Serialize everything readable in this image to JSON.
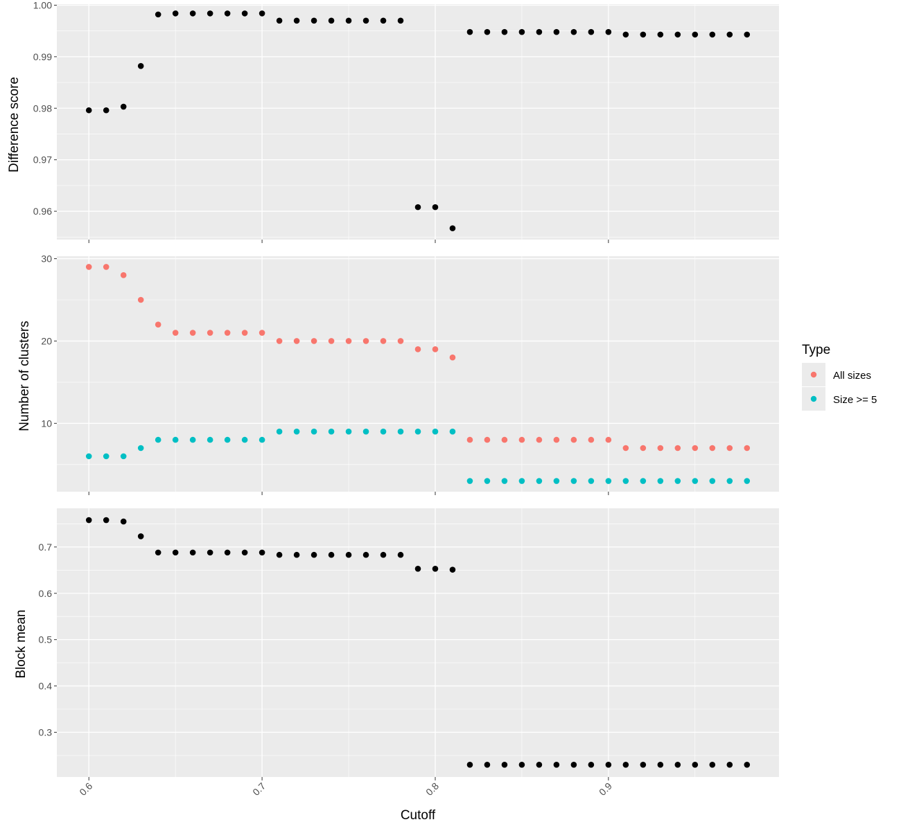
{
  "chart_data": [
    {
      "type": "scatter",
      "id": "difference",
      "ylabel": "Difference score",
      "ylim": [
        0.9545,
        1.0002
      ],
      "yticks": [
        "0.96",
        "0.97",
        "0.98",
        "0.99",
        "1.00"
      ],
      "yminor": [
        0.955,
        0.965,
        0.975,
        0.985,
        0.995
      ],
      "series": [
        {
          "color": "#000000",
          "x": [
            0.6,
            0.61,
            0.62,
            0.63,
            0.64,
            0.65,
            0.66,
            0.67,
            0.68,
            0.69,
            0.7,
            0.71,
            0.72,
            0.73,
            0.74,
            0.75,
            0.76,
            0.77,
            0.78,
            0.79,
            0.8,
            0.81,
            0.82,
            0.83,
            0.84,
            0.85,
            0.86,
            0.87,
            0.88,
            0.89,
            0.9,
            0.91,
            0.92,
            0.93,
            0.94,
            0.95,
            0.96,
            0.97,
            0.98
          ],
          "y": [
            0.9796,
            0.9796,
            0.9803,
            0.9882,
            0.9982,
            0.9984,
            0.9984,
            0.9984,
            0.9984,
            0.9984,
            0.9984,
            0.997,
            0.997,
            0.997,
            0.997,
            0.997,
            0.997,
            0.997,
            0.997,
            0.9608,
            0.9608,
            0.9567,
            0.9948,
            0.9948,
            0.9948,
            0.9948,
            0.9948,
            0.9948,
            0.9948,
            0.9948,
            0.9948,
            0.9943,
            0.9943,
            0.9943,
            0.9943,
            0.9943,
            0.9943,
            0.9943,
            0.9943
          ]
        }
      ]
    },
    {
      "type": "scatter",
      "id": "clusters",
      "ylabel": "Number of clusters",
      "ylim": [
        1.7,
        30.3
      ],
      "yticks": [
        "10",
        "20",
        "30"
      ],
      "yminor": [
        5,
        15,
        25
      ],
      "series": [
        {
          "name": "All sizes",
          "color": "#F8766D",
          "x": [
            0.6,
            0.61,
            0.62,
            0.63,
            0.64,
            0.65,
            0.66,
            0.67,
            0.68,
            0.69,
            0.7,
            0.71,
            0.72,
            0.73,
            0.74,
            0.75,
            0.76,
            0.77,
            0.78,
            0.79,
            0.8,
            0.81,
            0.82,
            0.83,
            0.84,
            0.85,
            0.86,
            0.87,
            0.88,
            0.89,
            0.9,
            0.91,
            0.92,
            0.93,
            0.94,
            0.95,
            0.96,
            0.97,
            0.98
          ],
          "y": [
            29,
            29,
            28,
            25,
            22,
            21,
            21,
            21,
            21,
            21,
            21,
            20,
            20,
            20,
            20,
            20,
            20,
            20,
            20,
            19,
            19,
            18,
            8,
            8,
            8,
            8,
            8,
            8,
            8,
            8,
            8,
            7,
            7,
            7,
            7,
            7,
            7,
            7,
            7
          ]
        },
        {
          "name": "Size >= 5",
          "color": "#00BFC4",
          "x": [
            0.6,
            0.61,
            0.62,
            0.63,
            0.64,
            0.65,
            0.66,
            0.67,
            0.68,
            0.69,
            0.7,
            0.71,
            0.72,
            0.73,
            0.74,
            0.75,
            0.76,
            0.77,
            0.78,
            0.79,
            0.8,
            0.81,
            0.82,
            0.83,
            0.84,
            0.85,
            0.86,
            0.87,
            0.88,
            0.89,
            0.9,
            0.91,
            0.92,
            0.93,
            0.94,
            0.95,
            0.96,
            0.97,
            0.98
          ],
          "y": [
            6,
            6,
            6,
            7,
            8,
            8,
            8,
            8,
            8,
            8,
            8,
            9,
            9,
            9,
            9,
            9,
            9,
            9,
            9,
            9,
            9,
            9,
            3,
            3,
            3,
            3,
            3,
            3,
            3,
            3,
            3,
            3,
            3,
            3,
            3,
            3,
            3,
            3,
            3
          ]
        }
      ]
    },
    {
      "type": "scatter",
      "id": "blockmean",
      "ylabel": "Block mean",
      "ylim": [
        0.2035,
        0.7835
      ],
      "yticks": [
        "0.3",
        "0.4",
        "0.5",
        "0.6",
        "0.7"
      ],
      "yminor": [
        0.25,
        0.35,
        0.45,
        0.55,
        0.65,
        0.75
      ],
      "series": [
        {
          "color": "#000000",
          "x": [
            0.6,
            0.61,
            0.62,
            0.63,
            0.64,
            0.65,
            0.66,
            0.67,
            0.68,
            0.69,
            0.7,
            0.71,
            0.72,
            0.73,
            0.74,
            0.75,
            0.76,
            0.77,
            0.78,
            0.79,
            0.8,
            0.81,
            0.82,
            0.83,
            0.84,
            0.85,
            0.86,
            0.87,
            0.88,
            0.89,
            0.9,
            0.91,
            0.92,
            0.93,
            0.94,
            0.95,
            0.96,
            0.97,
            0.98
          ],
          "y": [
            0.758,
            0.758,
            0.755,
            0.723,
            0.688,
            0.688,
            0.688,
            0.688,
            0.688,
            0.688,
            0.688,
            0.683,
            0.683,
            0.683,
            0.683,
            0.683,
            0.683,
            0.683,
            0.683,
            0.653,
            0.653,
            0.651,
            0.23,
            0.23,
            0.23,
            0.23,
            0.23,
            0.23,
            0.23,
            0.23,
            0.23,
            0.23,
            0.23,
            0.23,
            0.23,
            0.23,
            0.23,
            0.23,
            0.23
          ]
        }
      ]
    }
  ],
  "x_axis": {
    "label": "Cutoff",
    "xlim": [
      0.5815,
      0.9985
    ],
    "ticks": [
      "0.6",
      "0.7",
      "0.8",
      "0.9"
    ],
    "minor": [
      0.65,
      0.75,
      0.85,
      0.95
    ]
  },
  "legend": {
    "title": "Type",
    "position": "right",
    "items": [
      {
        "label": "All sizes",
        "color": "#F8766D"
      },
      {
        "label": "Size >= 5",
        "color": "#00BFC4"
      }
    ]
  },
  "style": {
    "panel_background": "#EBEBEB",
    "grid_color": "#FFFFFF",
    "tick_color": "#333333",
    "point_black": "#000000"
  }
}
